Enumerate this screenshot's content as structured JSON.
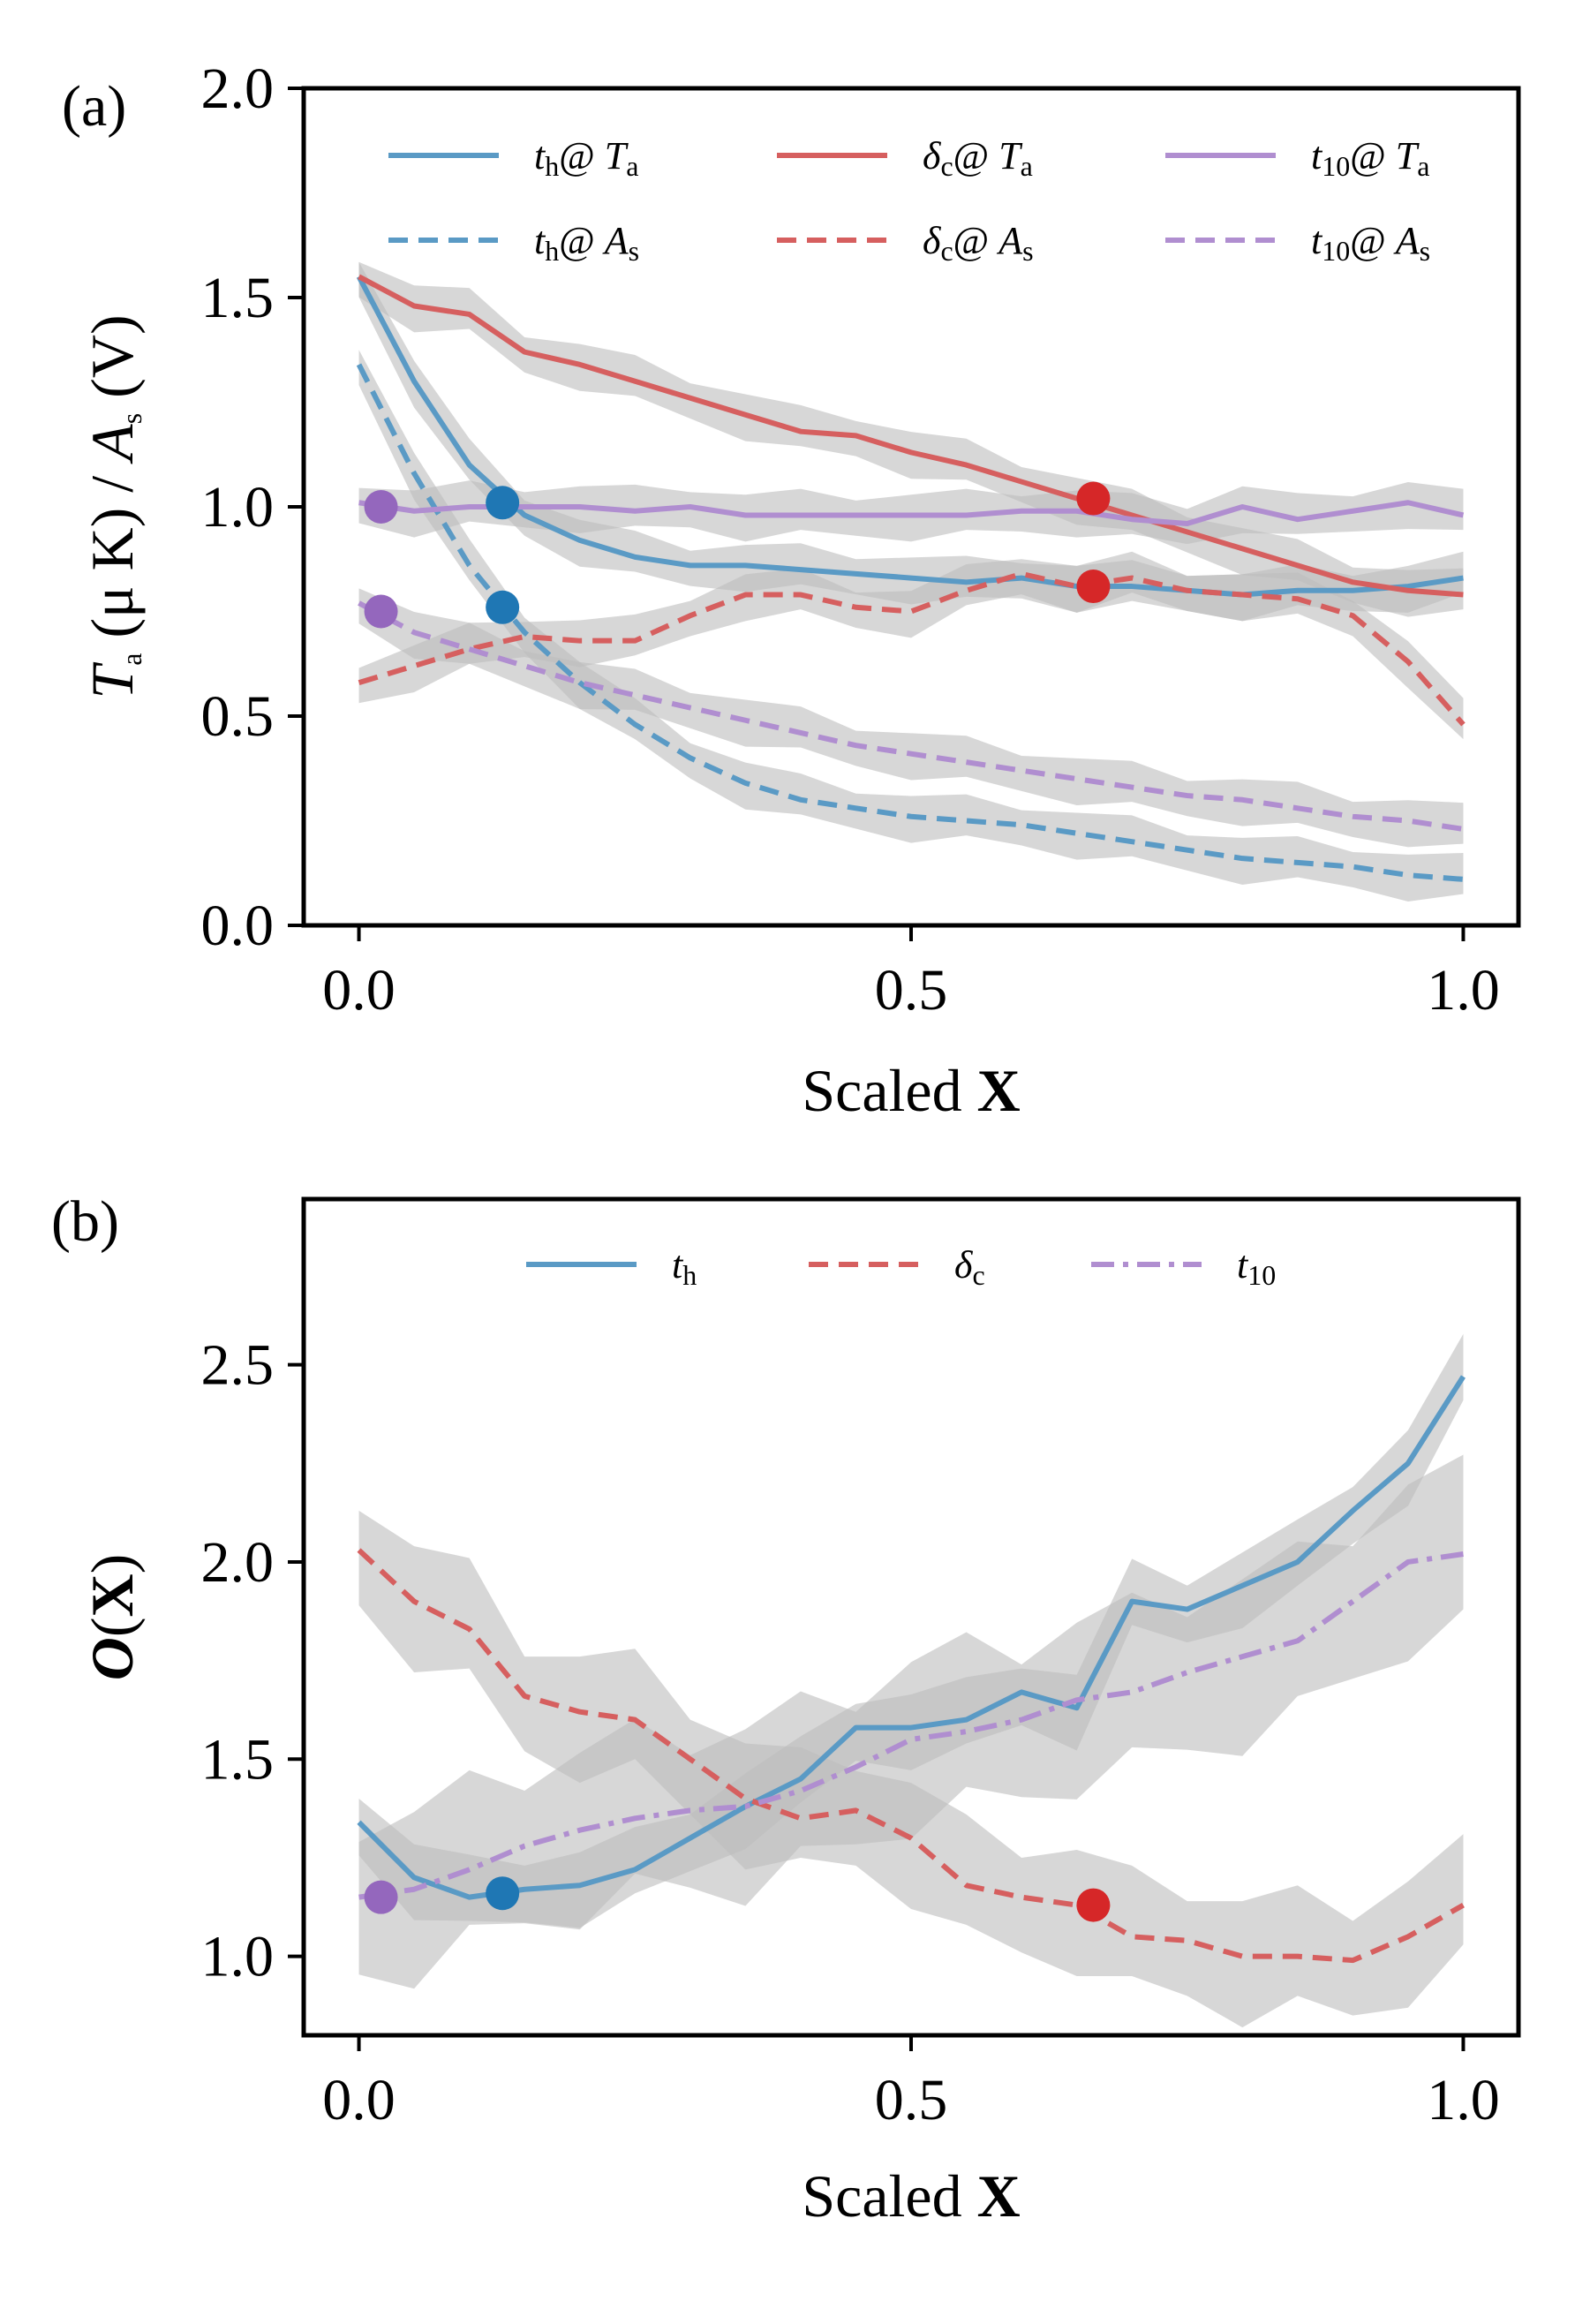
{
  "chart_data": [
    {
      "type": "line",
      "panel_label": "(a)",
      "xlabel_prefix": "Scaled ",
      "xlabel_bold": "X",
      "ylabel_parts": [
        "T",
        "a",
        " (μ K) / ",
        "A",
        "s",
        " (V)"
      ],
      "xlim": [
        -0.05,
        1.05
      ],
      "ylim": [
        0.0,
        2.0
      ],
      "xticks": [
        0.0,
        0.5,
        1.0
      ],
      "xtick_labels": [
        "0.0",
        "0.5",
        "1.0"
      ],
      "yticks": [
        0.0,
        0.5,
        1.0,
        1.5,
        2.0
      ],
      "ytick_labels": [
        "0.0",
        "0.5",
        "1.0",
        "1.5",
        "2.0"
      ],
      "legend_position": "top",
      "series": [
        {
          "name": "t_h@ T_a",
          "legend_main": "t",
          "legend_sub": "h",
          "legend_tail": "@ ",
          "legend_var": "T",
          "legend_var_sub": "a",
          "color": "#5a9ac5",
          "dash": "solid",
          "x": [
            0.0,
            0.05,
            0.1,
            0.15,
            0.2,
            0.25,
            0.3,
            0.35,
            0.4,
            0.45,
            0.5,
            0.55,
            0.6,
            0.65,
            0.7,
            0.75,
            0.8,
            0.85,
            0.9,
            0.95,
            1.0
          ],
          "y": [
            1.55,
            1.3,
            1.1,
            0.98,
            0.92,
            0.88,
            0.86,
            0.86,
            0.85,
            0.84,
            0.83,
            0.82,
            0.83,
            0.81,
            0.81,
            0.8,
            0.79,
            0.8,
            0.8,
            0.81,
            0.83
          ]
        },
        {
          "name": "t_h@ A_s",
          "legend_main": "t",
          "legend_sub": "h",
          "legend_tail": "@ ",
          "legend_var": "A",
          "legend_var_sub": "s",
          "color": "#5a9ac5",
          "dash": "dashed",
          "x": [
            0.0,
            0.05,
            0.1,
            0.15,
            0.2,
            0.25,
            0.3,
            0.35,
            0.4,
            0.45,
            0.5,
            0.55,
            0.6,
            0.65,
            0.7,
            0.75,
            0.8,
            0.85,
            0.9,
            0.95,
            1.0
          ],
          "y": [
            1.34,
            1.08,
            0.86,
            0.7,
            0.58,
            0.48,
            0.4,
            0.34,
            0.3,
            0.28,
            0.26,
            0.25,
            0.24,
            0.22,
            0.2,
            0.18,
            0.16,
            0.15,
            0.14,
            0.12,
            0.11
          ]
        },
        {
          "name": "δ_c@ T_a",
          "legend_main": "δ",
          "legend_sub": "c",
          "legend_tail": "@ ",
          "legend_var": "T",
          "legend_var_sub": "a",
          "color": "#d65f5f",
          "dash": "solid",
          "x": [
            0.0,
            0.05,
            0.1,
            0.15,
            0.2,
            0.25,
            0.3,
            0.35,
            0.4,
            0.45,
            0.5,
            0.55,
            0.6,
            0.65,
            0.7,
            0.75,
            0.8,
            0.85,
            0.9,
            0.95,
            1.0
          ],
          "y": [
            1.55,
            1.48,
            1.46,
            1.37,
            1.34,
            1.3,
            1.26,
            1.22,
            1.18,
            1.17,
            1.13,
            1.1,
            1.06,
            1.02,
            0.98,
            0.94,
            0.9,
            0.86,
            0.82,
            0.8,
            0.79
          ]
        },
        {
          "name": "δ_c@ A_s",
          "legend_main": "δ",
          "legend_sub": "c",
          "legend_tail": "@ ",
          "legend_var": "A",
          "legend_var_sub": "s",
          "color": "#d65f5f",
          "dash": "dashed",
          "x": [
            0.0,
            0.05,
            0.1,
            0.15,
            0.2,
            0.25,
            0.3,
            0.35,
            0.4,
            0.45,
            0.5,
            0.55,
            0.6,
            0.65,
            0.7,
            0.75,
            0.8,
            0.85,
            0.9,
            0.95,
            1.0
          ],
          "y": [
            0.58,
            0.62,
            0.66,
            0.69,
            0.68,
            0.68,
            0.74,
            0.79,
            0.79,
            0.76,
            0.75,
            0.8,
            0.84,
            0.81,
            0.83,
            0.8,
            0.79,
            0.78,
            0.74,
            0.63,
            0.48
          ]
        },
        {
          "name": "t_10@ T_a",
          "legend_main": "t",
          "legend_sub": "10",
          "legend_tail": "@ ",
          "legend_var": "T",
          "legend_var_sub": "a",
          "color": "#b08ed0",
          "dash": "solid",
          "x": [
            0.0,
            0.05,
            0.1,
            0.15,
            0.2,
            0.25,
            0.3,
            0.35,
            0.4,
            0.45,
            0.5,
            0.55,
            0.6,
            0.65,
            0.7,
            0.75,
            0.8,
            0.85,
            0.9,
            0.95,
            1.0
          ],
          "y": [
            1.01,
            0.99,
            1.0,
            1.0,
            1.0,
            0.99,
            1.0,
            0.98,
            0.98,
            0.98,
            0.98,
            0.98,
            0.99,
            0.99,
            0.97,
            0.96,
            1.0,
            0.97,
            0.99,
            1.01,
            0.98
          ]
        },
        {
          "name": "t_10@ A_s",
          "legend_main": "t",
          "legend_sub": "10",
          "legend_tail": "@ ",
          "legend_var": "A",
          "legend_var_sub": "s",
          "color": "#b08ed0",
          "dash": "dashed",
          "x": [
            0.0,
            0.05,
            0.1,
            0.15,
            0.2,
            0.25,
            0.3,
            0.35,
            0.4,
            0.45,
            0.5,
            0.55,
            0.6,
            0.65,
            0.7,
            0.75,
            0.8,
            0.85,
            0.9,
            0.95,
            1.0
          ],
          "y": [
            0.77,
            0.7,
            0.66,
            0.62,
            0.58,
            0.55,
            0.52,
            0.49,
            0.46,
            0.43,
            0.41,
            0.39,
            0.37,
            0.35,
            0.33,
            0.31,
            0.3,
            0.28,
            0.26,
            0.25,
            0.23
          ]
        }
      ],
      "markers": [
        {
          "x": 0.02,
          "y": 1.0,
          "color": "#9467bd"
        },
        {
          "x": 0.02,
          "y": 0.75,
          "color": "#9467bd"
        },
        {
          "x": 0.13,
          "y": 1.01,
          "color": "#1f77b4"
        },
        {
          "x": 0.13,
          "y": 0.76,
          "color": "#1f77b4"
        },
        {
          "x": 0.665,
          "y": 1.02,
          "color": "#d62728"
        },
        {
          "x": 0.665,
          "y": 0.81,
          "color": "#d62728"
        }
      ]
    },
    {
      "type": "line",
      "panel_label": "(b)",
      "xlabel_prefix": "Scaled ",
      "xlabel_bold": "X",
      "ylabel_parts": [
        "O",
        "(",
        "X",
        ")"
      ],
      "xlim": [
        -0.05,
        1.05
      ],
      "ylim": [
        0.8,
        2.92
      ],
      "xticks": [
        0.0,
        0.5,
        1.0
      ],
      "xtick_labels": [
        "0.0",
        "0.5",
        "1.0"
      ],
      "yticks": [
        1.0,
        1.5,
        2.0,
        2.5
      ],
      "ytick_labels": [
        "1.0",
        "1.5",
        "2.0",
        "2.5"
      ],
      "legend_position": "top",
      "series": [
        {
          "name": "t_h",
          "legend_main": "t",
          "legend_sub": "h",
          "legend_tail": "",
          "legend_var": "",
          "legend_var_sub": "",
          "color": "#5a9ac5",
          "dash": "solid",
          "x": [
            0.0,
            0.05,
            0.1,
            0.15,
            0.2,
            0.25,
            0.3,
            0.35,
            0.4,
            0.45,
            0.5,
            0.55,
            0.6,
            0.65,
            0.7,
            0.75,
            0.8,
            0.85,
            0.9,
            0.95,
            1.0
          ],
          "y": [
            1.34,
            1.2,
            1.15,
            1.17,
            1.18,
            1.22,
            1.3,
            1.38,
            1.45,
            1.58,
            1.58,
            1.6,
            1.67,
            1.63,
            1.9,
            1.88,
            1.94,
            2.0,
            2.13,
            2.25,
            2.47
          ]
        },
        {
          "name": "δ_c",
          "legend_main": "δ",
          "legend_sub": "c",
          "legend_tail": "",
          "legend_var": "",
          "legend_var_sub": "",
          "color": "#d65f5f",
          "dash": "dashed",
          "x": [
            0.0,
            0.05,
            0.1,
            0.15,
            0.2,
            0.25,
            0.3,
            0.35,
            0.4,
            0.45,
            0.5,
            0.55,
            0.6,
            0.65,
            0.7,
            0.75,
            0.8,
            0.85,
            0.9,
            0.95,
            1.0
          ],
          "y": [
            2.03,
            1.9,
            1.83,
            1.66,
            1.62,
            1.6,
            1.5,
            1.4,
            1.35,
            1.37,
            1.3,
            1.18,
            1.15,
            1.13,
            1.05,
            1.04,
            1.0,
            1.0,
            0.99,
            1.05,
            1.13
          ]
        },
        {
          "name": "t_10",
          "legend_main": "t",
          "legend_sub": "10",
          "legend_tail": "",
          "legend_var": "",
          "legend_var_sub": "",
          "color": "#b08ed0",
          "dash": "dashdot",
          "x": [
            0.0,
            0.05,
            0.1,
            0.15,
            0.2,
            0.25,
            0.3,
            0.35,
            0.4,
            0.45,
            0.5,
            0.55,
            0.6,
            0.65,
            0.7,
            0.75,
            0.8,
            0.85,
            0.9,
            0.95,
            1.0
          ],
          "y": [
            1.15,
            1.17,
            1.22,
            1.28,
            1.32,
            1.35,
            1.37,
            1.38,
            1.42,
            1.48,
            1.55,
            1.57,
            1.6,
            1.65,
            1.67,
            1.72,
            1.76,
            1.8,
            1.9,
            2.0,
            2.02
          ]
        }
      ],
      "markers": [
        {
          "x": 0.02,
          "y": 1.15,
          "color": "#9467bd"
        },
        {
          "x": 0.13,
          "y": 1.16,
          "color": "#1f77b4"
        },
        {
          "x": 0.665,
          "y": 1.13,
          "color": "#d62728"
        }
      ]
    }
  ]
}
